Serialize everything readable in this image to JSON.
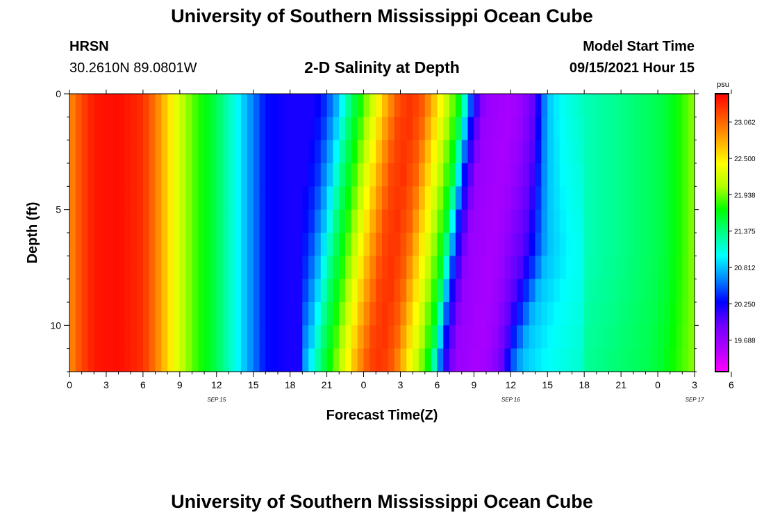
{
  "header": {
    "title": "University of Southern Mississippi Ocean Cube",
    "footer_title": "University of Southern Mississippi Ocean Cube",
    "station": "HRSN",
    "coords": "30.2610N  89.0801W",
    "plot_title": "2-D Salinity at Depth",
    "model_label": "Model Start Time",
    "model_time": "09/15/2021 Hour 15"
  },
  "chart_data": {
    "type": "heatmap",
    "title": "2-D Salinity at Depth",
    "xlabel": "Forecast Time(Z)",
    "ylabel": "Depth (ft)",
    "units": "psu",
    "y_ticks": [
      0,
      5,
      10
    ],
    "y_range": [
      0,
      12
    ],
    "y_inverted": true,
    "x_tick_labels": [
      "0",
      "3",
      "6",
      "9",
      "12",
      "15",
      "18",
      "21",
      "0",
      "3",
      "6",
      "9",
      "12",
      "15",
      "18",
      "21",
      "0",
      "3",
      "6"
    ],
    "date_labels": [
      {
        "label": "SEP 15",
        "at_tick": 4
      },
      {
        "label": "SEP 16",
        "at_tick": 12
      },
      {
        "label": "SEP 17",
        "at_tick": 17
      }
    ],
    "colorbar": {
      "ticks": [
        19.688,
        20.25,
        20.812,
        21.375,
        21.938,
        22.5,
        23.062
      ],
      "tick_labels": [
        "19.688",
        "20.250",
        "20.812",
        "21.375",
        "21.938",
        "22.500",
        "23.062"
      ],
      "min": 19.2,
      "max": 23.5,
      "colors": [
        "#ff00ff",
        "#b000ff",
        "#7000ff",
        "#0000ff",
        "#0088ff",
        "#00ffff",
        "#00ff88",
        "#00ff00",
        "#b0ff00",
        "#ffff00",
        "#ffaa00",
        "#ff5500",
        "#ff0000"
      ]
    },
    "surface_salinity_by_hour": [
      [
        0,
        22.9
      ],
      [
        1,
        23.2
      ],
      [
        2,
        23.4
      ],
      [
        4,
        23.45
      ],
      [
        6,
        23.3
      ],
      [
        7,
        23.0
      ],
      [
        8,
        22.6
      ],
      [
        9,
        22.2
      ],
      [
        10,
        21.9
      ],
      [
        11,
        21.7
      ],
      [
        12,
        21.5
      ],
      [
        13,
        21.2
      ],
      [
        14,
        20.9
      ],
      [
        15,
        20.6
      ],
      [
        16,
        20.3
      ],
      [
        18,
        20.2
      ],
      [
        20,
        20.2
      ],
      [
        21,
        20.4
      ],
      [
        22,
        20.8
      ],
      [
        23,
        21.4
      ],
      [
        24,
        21.8
      ],
      [
        25,
        22.3
      ],
      [
        26,
        22.8
      ],
      [
        27,
        23.2
      ],
      [
        28,
        23.3
      ],
      [
        29,
        23.1
      ],
      [
        30,
        22.6
      ],
      [
        31,
        22.1
      ],
      [
        32,
        21.6
      ],
      [
        33,
        20.3
      ],
      [
        34,
        19.7
      ],
      [
        36,
        19.6
      ],
      [
        37,
        19.7
      ],
      [
        38,
        20.0
      ],
      [
        39,
        20.8
      ],
      [
        40,
        21.0
      ],
      [
        42,
        21.2
      ],
      [
        44,
        21.3
      ],
      [
        46,
        21.4
      ],
      [
        48,
        21.5
      ],
      [
        49,
        21.6
      ],
      [
        50,
        21.8
      ],
      [
        51,
        22.0
      ]
    ]
  }
}
